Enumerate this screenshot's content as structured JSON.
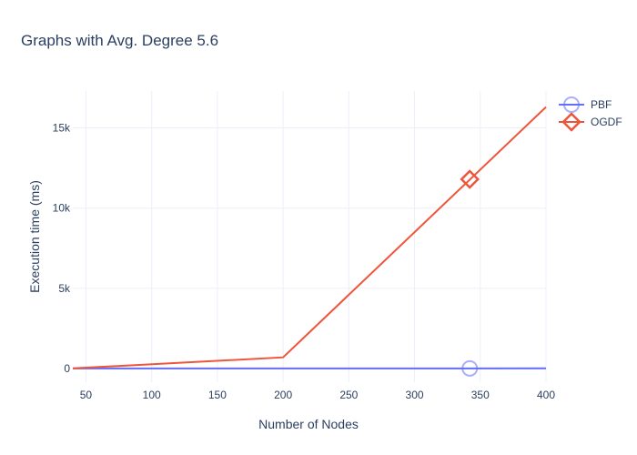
{
  "chart_data": {
    "type": "line",
    "title": "Graphs with Avg. Degree 5.6",
    "xlabel": "Number of Nodes",
    "ylabel": "Execution time (ms)",
    "xlim": [
      40,
      400
    ],
    "ylim": [
      -850,
      17300
    ],
    "x_ticks": [
      50,
      100,
      150,
      200,
      250,
      300,
      350,
      400
    ],
    "x_tick_labels": [
      "50",
      "100",
      "150",
      "200",
      "250",
      "300",
      "350",
      "400"
    ],
    "y_ticks": [
      0,
      5000,
      10000,
      15000
    ],
    "y_tick_labels": [
      "0",
      "5k",
      "10k",
      "15k"
    ],
    "grid": true,
    "legend_position": "top-right",
    "series": [
      {
        "name": "PBF",
        "color": "#636efa",
        "marker": "circle-open",
        "x": [
          40,
          200,
          400
        ],
        "y": [
          5,
          8,
          10
        ],
        "marker_point": [
          342,
          10
        ]
      },
      {
        "name": "OGDF",
        "color": "#EF553B",
        "marker": "diamond-open",
        "x": [
          40,
          200,
          400
        ],
        "y": [
          10,
          700,
          16300
        ],
        "marker_point": [
          342,
          11800
        ]
      }
    ]
  }
}
